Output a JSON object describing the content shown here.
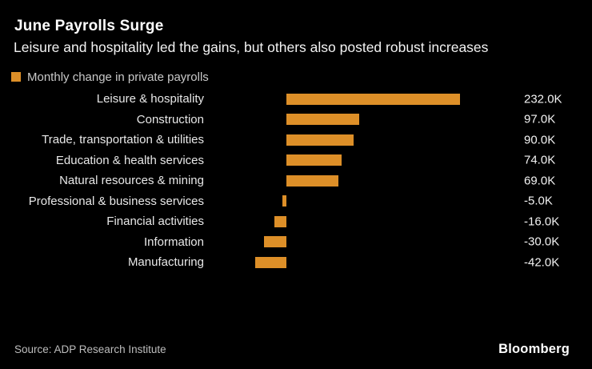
{
  "header": {
    "title": "June Payrolls Surge",
    "subtitle": "Leisure and hospitality led the gains, but others also posted robust increases"
  },
  "legend": {
    "label": "Monthly change in private payrolls"
  },
  "chart_data": {
    "type": "bar",
    "orientation": "horizontal",
    "title": "June Payrolls Surge",
    "subtitle": "Leisure and hospitality led the gains, but others also posted robust increases",
    "series_name": "Monthly change in private payrolls",
    "categories": [
      "Leisure & hospitality",
      "Construction",
      "Trade, transportation & utilities",
      "Education & health services",
      "Natural resources & mining",
      "Professional & business services",
      "Financial activities",
      "Information",
      "Manufacturing"
    ],
    "values": [
      232.0,
      97.0,
      90.0,
      74.0,
      69.0,
      -5.0,
      -16.0,
      -30.0,
      -42.0
    ],
    "value_labels": [
      "232.0K",
      "97.0K",
      "90.0K",
      "74.0K",
      "69.0K",
      "-5.0K",
      "-16.0K",
      "-30.0K",
      "-42.0K"
    ],
    "unit": "K",
    "xlabel": "",
    "ylabel": "",
    "xlim": [
      -60,
      260
    ],
    "grid": false,
    "legend_position": "top-left"
  },
  "colors": {
    "background": "#000000",
    "bar": "#DD8F28",
    "title_text": "#FFFFFF",
    "label_text": "#E8E8E8",
    "legend_text": "#C9C9C9",
    "source_text": "#BDBDBD"
  },
  "footer": {
    "source": "Source: ADP Research Institute",
    "logo": "Bloomberg"
  }
}
